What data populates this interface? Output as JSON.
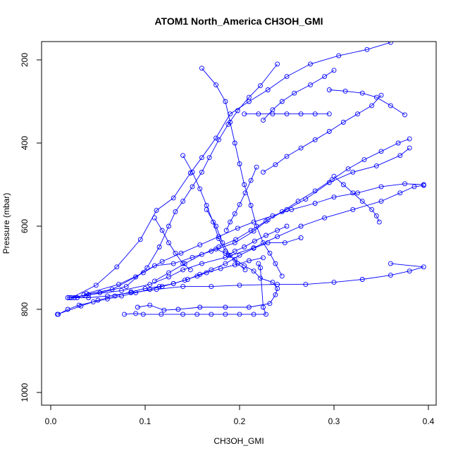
{
  "chart_data": {
    "type": "line",
    "title": "ATOM1 North_America CH3OH_GMI",
    "xlabel": "CH3OH_GMI",
    "ylabel": "Pressure (mbar)",
    "xlim": [
      0,
      0.4
    ],
    "ylim": [
      1000,
      200
    ],
    "y_axis_inverted": true,
    "xticks": [
      "0.0",
      "0.1",
      "0.2",
      "0.3",
      "0.4"
    ],
    "yticks": [
      "200",
      "400",
      "600",
      "800",
      "1000"
    ],
    "series_color": "#0000ff",
    "marker": "open-circle",
    "series": [
      {
        "points": [
          [
            0.008,
            812
          ],
          [
            0.018,
            800
          ],
          [
            0.03,
            790
          ],
          [
            0.045,
            782
          ],
          [
            0.06,
            775
          ],
          [
            0.075,
            768
          ],
          [
            0.09,
            760
          ],
          [
            0.105,
            752
          ],
          [
            0.118,
            745
          ],
          [
            0.13,
            738
          ],
          [
            0.142,
            730
          ],
          [
            0.155,
            720
          ],
          [
            0.165,
            712
          ],
          [
            0.18,
            702
          ],
          [
            0.195,
            693
          ],
          [
            0.21,
            683
          ],
          [
            0.225,
            676
          ]
        ]
      },
      {
        "points": [
          [
            0.007,
            812
          ],
          [
            0.032,
            792
          ],
          [
            0.05,
            778
          ],
          [
            0.068,
            768
          ],
          [
            0.085,
            758
          ],
          [
            0.1,
            750
          ],
          [
            0.115,
            745
          ],
          [
            0.13,
            738
          ],
          [
            0.145,
            728
          ],
          [
            0.158,
            716
          ],
          [
            0.17,
            705
          ],
          [
            0.185,
            690
          ],
          [
            0.2,
            670
          ],
          [
            0.215,
            653
          ],
          [
            0.23,
            640
          ],
          [
            0.248,
            640
          ],
          [
            0.265,
            628
          ]
        ]
      },
      {
        "points": [
          [
            0.092,
            795
          ],
          [
            0.105,
            790
          ],
          [
            0.12,
            802
          ],
          [
            0.135,
            800
          ],
          [
            0.158,
            795
          ],
          [
            0.185,
            795
          ],
          [
            0.21,
            795
          ],
          [
            0.232,
            786
          ],
          [
            0.238,
            765
          ],
          [
            0.24,
            750
          ],
          [
            0.235,
            735
          ],
          [
            0.222,
            725
          ],
          [
            0.215,
            708
          ],
          [
            0.205,
            695
          ],
          [
            0.195,
            680
          ],
          [
            0.185,
            665
          ],
          [
            0.175,
            655
          ]
        ]
      },
      {
        "points": [
          [
            0.078,
            812
          ],
          [
            0.09,
            810
          ],
          [
            0.098,
            812
          ],
          [
            0.117,
            812
          ],
          [
            0.14,
            812
          ],
          [
            0.155,
            812
          ],
          [
            0.17,
            812
          ],
          [
            0.185,
            812
          ],
          [
            0.2,
            812
          ],
          [
            0.215,
            812
          ],
          [
            0.228,
            812
          ],
          [
            0.225,
            795
          ],
          [
            0.222,
            700
          ],
          [
            0.22,
            690
          ]
        ]
      },
      {
        "points": [
          [
            0.018,
            772
          ],
          [
            0.028,
            772
          ],
          [
            0.04,
            772
          ],
          [
            0.06,
            768
          ],
          [
            0.085,
            760
          ],
          [
            0.112,
            752
          ],
          [
            0.14,
            745
          ],
          [
            0.17,
            745
          ],
          [
            0.2,
            742
          ],
          [
            0.24,
            740
          ],
          [
            0.27,
            740
          ],
          [
            0.3,
            735
          ],
          [
            0.33,
            728
          ],
          [
            0.36,
            718
          ],
          [
            0.38,
            708
          ],
          [
            0.395,
            698
          ],
          [
            0.36,
            690
          ]
        ]
      },
      {
        "points": [
          [
            0.02,
            772
          ],
          [
            0.04,
            765
          ],
          [
            0.075,
            755
          ],
          [
            0.105,
            740
          ],
          [
            0.125,
            722
          ],
          [
            0.14,
            705
          ],
          [
            0.16,
            690
          ],
          [
            0.185,
            675
          ],
          [
            0.215,
            652
          ],
          [
            0.24,
            625
          ],
          [
            0.265,
            600
          ],
          [
            0.29,
            580
          ],
          [
            0.32,
            560
          ],
          [
            0.35,
            540
          ],
          [
            0.37,
            520
          ],
          [
            0.385,
            505
          ],
          [
            0.395,
            502
          ]
        ]
      },
      {
        "points": [
          [
            0.022,
            772
          ],
          [
            0.048,
            742
          ],
          [
            0.07,
            698
          ],
          [
            0.095,
            632
          ],
          [
            0.112,
            562
          ],
          [
            0.13,
            532
          ],
          [
            0.148,
            472
          ],
          [
            0.16,
            435
          ],
          [
            0.175,
            388
          ],
          [
            0.19,
            330
          ],
          [
            0.21,
            300
          ],
          [
            0.23,
            272
          ],
          [
            0.25,
            240
          ],
          [
            0.275,
            210
          ],
          [
            0.305,
            190
          ],
          [
            0.335,
            175
          ],
          [
            0.36,
            158
          ]
        ]
      },
      {
        "points": [
          [
            0.025,
            772
          ],
          [
            0.052,
            760
          ],
          [
            0.08,
            745
          ],
          [
            0.102,
            700
          ],
          [
            0.115,
            650
          ],
          [
            0.125,
            600
          ],
          [
            0.132,
            565
          ],
          [
            0.14,
            540
          ],
          [
            0.15,
            505
          ],
          [
            0.16,
            470
          ],
          [
            0.168,
            435
          ],
          [
            0.178,
            392
          ],
          [
            0.188,
            355
          ],
          [
            0.198,
            322
          ],
          [
            0.21,
            290
          ],
          [
            0.222,
            262
          ],
          [
            0.24,
            210
          ]
        ]
      },
      {
        "points": [
          [
            0.035,
            765
          ],
          [
            0.065,
            752
          ],
          [
            0.09,
            722
          ],
          [
            0.11,
            695
          ],
          [
            0.13,
            690
          ],
          [
            0.15,
            675
          ],
          [
            0.17,
            660
          ],
          [
            0.195,
            640
          ],
          [
            0.215,
            612
          ],
          [
            0.23,
            585
          ],
          [
            0.25,
            560
          ],
          [
            0.27,
            535
          ],
          [
            0.295,
            495
          ],
          [
            0.32,
            470
          ],
          [
            0.345,
            455
          ],
          [
            0.37,
            430
          ],
          [
            0.38,
            412
          ]
        ]
      },
      {
        "points": [
          [
            0.038,
            762
          ],
          [
            0.072,
            740
          ],
          [
            0.098,
            712
          ],
          [
            0.118,
            685
          ],
          [
            0.138,
            665
          ],
          [
            0.158,
            645
          ],
          [
            0.178,
            625
          ],
          [
            0.198,
            605
          ],
          [
            0.215,
            590
          ],
          [
            0.235,
            575
          ],
          [
            0.255,
            560
          ],
          [
            0.28,
            545
          ],
          [
            0.3,
            530
          ],
          [
            0.325,
            520
          ],
          [
            0.35,
            505
          ],
          [
            0.375,
            498
          ],
          [
            0.395,
            500
          ]
        ]
      },
      {
        "points": [
          [
            0.11,
            732
          ],
          [
            0.125,
            712
          ],
          [
            0.142,
            690
          ],
          [
            0.16,
            668
          ],
          [
            0.178,
            650
          ],
          [
            0.196,
            632
          ],
          [
            0.212,
            610
          ],
          [
            0.228,
            588
          ],
          [
            0.245,
            565
          ],
          [
            0.262,
            540
          ],
          [
            0.28,
            515
          ],
          [
            0.298,
            488
          ],
          [
            0.315,
            462
          ],
          [
            0.332,
            440
          ],
          [
            0.35,
            420
          ],
          [
            0.368,
            400
          ],
          [
            0.38,
            390
          ]
        ]
      },
      {
        "points": [
          [
            0.16,
            220
          ],
          [
            0.175,
            260
          ],
          [
            0.185,
            300
          ],
          [
            0.19,
            350
          ],
          [
            0.195,
            400
          ],
          [
            0.2,
            450
          ],
          [
            0.205,
            500
          ],
          [
            0.212,
            550
          ],
          [
            0.218,
            600
          ],
          [
            0.225,
            640
          ],
          [
            0.232,
            665
          ],
          [
            0.238,
            690
          ],
          [
            0.245,
            720
          ]
        ]
      },
      {
        "points": [
          [
            0.3,
            480
          ],
          [
            0.31,
            500
          ],
          [
            0.32,
            520
          ],
          [
            0.33,
            540
          ],
          [
            0.34,
            560
          ],
          [
            0.345,
            575
          ],
          [
            0.348,
            590
          ]
        ]
      },
      {
        "points": [
          [
            0.35,
            285
          ],
          [
            0.34,
            310
          ],
          [
            0.325,
            330
          ],
          [
            0.31,
            350
          ],
          [
            0.295,
            372
          ],
          [
            0.28,
            392
          ],
          [
            0.265,
            412
          ],
          [
            0.25,
            432
          ],
          [
            0.238,
            452
          ],
          [
            0.225,
            470
          ]
        ]
      },
      {
        "points": [
          [
            0.295,
            330
          ],
          [
            0.28,
            330
          ],
          [
            0.265,
            330
          ],
          [
            0.25,
            330
          ],
          [
            0.235,
            330
          ],
          [
            0.22,
            330
          ],
          [
            0.205,
            330
          ]
        ]
      },
      {
        "points": [
          [
            0.375,
            332
          ],
          [
            0.36,
            310
          ],
          [
            0.345,
            290
          ],
          [
            0.33,
            280
          ],
          [
            0.312,
            275
          ],
          [
            0.295,
            272
          ]
        ]
      },
      {
        "points": [
          [
            0.14,
            430
          ],
          [
            0.15,
            470
          ],
          [
            0.158,
            510
          ],
          [
            0.165,
            550
          ],
          [
            0.172,
            590
          ],
          [
            0.178,
            630
          ],
          [
            0.185,
            660
          ]
        ]
      },
      {
        "points": [
          [
            0.11,
            580
          ],
          [
            0.118,
            610
          ],
          [
            0.125,
            640
          ],
          [
            0.132,
            665
          ],
          [
            0.14,
            690
          ],
          [
            0.148,
            705
          ]
        ]
      },
      {
        "points": [
          [
            0.25,
            600
          ],
          [
            0.24,
            610
          ],
          [
            0.228,
            622
          ],
          [
            0.216,
            636
          ],
          [
            0.205,
            650
          ],
          [
            0.195,
            660
          ],
          [
            0.188,
            670
          ]
        ]
      },
      {
        "points": [
          [
            0.218,
            458
          ],
          [
            0.212,
            490
          ],
          [
            0.206,
            520
          ],
          [
            0.2,
            548
          ],
          [
            0.195,
            570
          ],
          [
            0.19,
            590
          ],
          [
            0.186,
            610
          ]
        ]
      },
      {
        "points": [
          [
            0.165,
            560
          ],
          [
            0.175,
            600
          ],
          [
            0.182,
            640
          ],
          [
            0.19,
            670
          ],
          [
            0.198,
            690
          ],
          [
            0.206,
            705
          ]
        ]
      },
      {
        "points": [
          [
            0.3,
            225
          ],
          [
            0.29,
            240
          ],
          [
            0.275,
            260
          ],
          [
            0.258,
            280
          ],
          [
            0.245,
            300
          ],
          [
            0.235,
            320
          ],
          [
            0.225,
            345
          ]
        ]
      }
    ]
  }
}
